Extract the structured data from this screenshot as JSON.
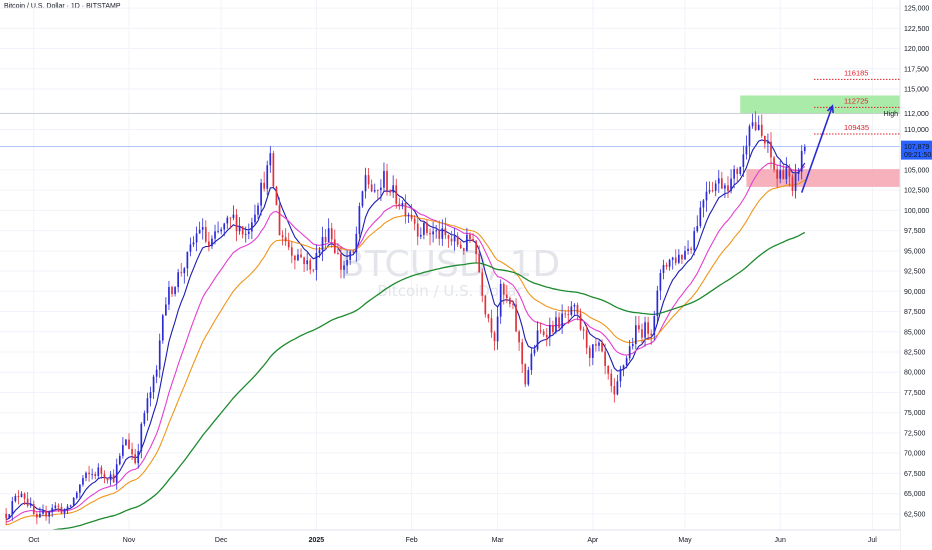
{
  "header": {
    "title": "Bitcoin / U.S. Dollar · 1D · BITSTAMP"
  },
  "watermark": {
    "symbol": "BTCUSD, 1D",
    "description": "Bitcoin / U.S. Dollar"
  },
  "colors": {
    "up": "#2b2bd6",
    "down": "#e0303a",
    "ema_fast": "#1c1cb0",
    "ema_mid": "#e43fd0",
    "ema_slow": "#f0961c",
    "ema_long": "#1e8a2e",
    "green_zone": "#9be79b",
    "red_zone": "#f4a3b2",
    "arrow": "#2a2ad0",
    "price_tag": "#2962ff",
    "level": "#e0202a",
    "grid": "#f0f3fa"
  },
  "chart_data": {
    "type": "candlestick",
    "symbol": "BTCUSD",
    "interval": "1D",
    "exchange": "BITSTAMP",
    "x_axis": {
      "ticks": [
        {
          "label": "Oct",
          "date": "2024-10-01",
          "bold": false
        },
        {
          "label": "Nov",
          "date": "2024-11-01",
          "bold": false
        },
        {
          "label": "Dec",
          "date": "2024-12-01",
          "bold": false
        },
        {
          "label": "2025",
          "date": "2025-01-01",
          "bold": true
        },
        {
          "label": "Feb",
          "date": "2025-02-01",
          "bold": false
        },
        {
          "label": "Mar",
          "date": "2025-03-01",
          "bold": false
        },
        {
          "label": "Apr",
          "date": "2025-04-01",
          "bold": false
        },
        {
          "label": "May",
          "date": "2025-05-01",
          "bold": false
        },
        {
          "label": "Jun",
          "date": "2025-06-01",
          "bold": false
        },
        {
          "label": "Jul",
          "date": "2025-07-01",
          "bold": false
        }
      ],
      "range": [
        "2024-09-20",
        "2025-07-10"
      ]
    },
    "y_axis": {
      "range": [
        60500,
        126000
      ],
      "ticks": [
        "62,500",
        "65,000",
        "67,500",
        "70,000",
        "72,500",
        "75,000",
        "77,500",
        "80,000",
        "82,500",
        "85,000",
        "87,500",
        "90,000",
        "92,500",
        "95,000",
        "97,500",
        "100,000",
        "102,500",
        "105,000",
        "110,000",
        "112,000",
        "115,000",
        "117,500",
        "120,000",
        "122,500",
        "125,000"
      ]
    },
    "current_price": {
      "value": 107879,
      "label": "107,879",
      "countdown": "09:21:50"
    },
    "high_marker": {
      "value": 112000,
      "text": "High",
      "label": "112,000"
    },
    "series": [
      {
        "name": "close",
        "anchors": [
          [
            "2024-09-22",
            62500
          ],
          [
            "2024-09-27",
            65500
          ],
          [
            "2024-10-02",
            61500
          ],
          [
            "2024-10-07",
            63500
          ],
          [
            "2024-10-12",
            62800
          ],
          [
            "2024-10-17",
            66800
          ],
          [
            "2024-10-22",
            67800
          ],
          [
            "2024-10-27",
            67000
          ],
          [
            "2024-10-31",
            71800
          ],
          [
            "2024-11-03",
            69000
          ],
          [
            "2024-11-06",
            75000
          ],
          [
            "2024-11-10",
            80000
          ],
          [
            "2024-11-12",
            88000
          ],
          [
            "2024-11-15",
            90500
          ],
          [
            "2024-11-20",
            94000
          ],
          [
            "2024-11-24",
            98000
          ],
          [
            "2024-11-27",
            95500
          ],
          [
            "2024-12-01",
            97500
          ],
          [
            "2024-12-05",
            99000
          ],
          [
            "2024-12-09",
            97000
          ],
          [
            "2024-12-13",
            101500
          ],
          [
            "2024-12-17",
            106000
          ],
          [
            "2024-12-20",
            97500
          ],
          [
            "2024-12-24",
            95000
          ],
          [
            "2024-12-28",
            94000
          ],
          [
            "2024-12-30",
            92500
          ],
          [
            "2025-01-05",
            98000
          ],
          [
            "2025-01-09",
            93000
          ],
          [
            "2025-01-13",
            94500
          ],
          [
            "2025-01-17",
            104500
          ],
          [
            "2025-01-20",
            101500
          ],
          [
            "2025-01-23",
            104000
          ],
          [
            "2025-01-26",
            102000
          ],
          [
            "2025-02-01",
            99500
          ],
          [
            "2025-02-03",
            97800
          ],
          [
            "2025-02-10",
            97000
          ],
          [
            "2025-02-18",
            95500
          ],
          [
            "2025-02-21",
            97000
          ],
          [
            "2025-02-25",
            88000
          ],
          [
            "2025-02-28",
            84500
          ],
          [
            "2025-03-02",
            90000
          ],
          [
            "2025-03-06",
            87500
          ],
          [
            "2025-03-10",
            79000
          ],
          [
            "2025-03-14",
            84500
          ],
          [
            "2025-03-20",
            86000
          ],
          [
            "2025-03-26",
            87500
          ],
          [
            "2025-03-31",
            82500
          ],
          [
            "2025-04-03",
            83000
          ],
          [
            "2025-04-08",
            76500
          ],
          [
            "2025-04-10",
            80000
          ],
          [
            "2025-04-15",
            85000
          ],
          [
            "2025-04-20",
            85500
          ],
          [
            "2025-04-24",
            93500
          ],
          [
            "2025-04-30",
            94500
          ],
          [
            "2025-05-03",
            96000
          ],
          [
            "2025-05-08",
            103000
          ],
          [
            "2025-05-12",
            103500
          ],
          [
            "2025-05-16",
            103500
          ],
          [
            "2025-05-20",
            106500
          ],
          [
            "2025-05-22",
            111500
          ],
          [
            "2025-05-26",
            109000
          ],
          [
            "2025-05-28",
            107500
          ],
          [
            "2025-05-31",
            104000
          ],
          [
            "2025-06-03",
            105500
          ],
          [
            "2025-06-05",
            101500
          ],
          [
            "2025-06-07",
            105500
          ],
          [
            "2025-06-09",
            107879
          ]
        ]
      }
    ],
    "moving_averages": [
      {
        "key": "ema_fast",
        "period": 8
      },
      {
        "key": "ema_mid",
        "period": 20
      },
      {
        "key": "ema_slow",
        "period": 34
      },
      {
        "key": "ema_long",
        "period": 100
      }
    ],
    "zones": [
      {
        "name": "supply-zone",
        "color_key": "green_zone",
        "from": 112000,
        "to": 114200,
        "start": "2025-05-19",
        "end": "2025-07-10"
      },
      {
        "name": "demand-zone",
        "color_key": "red_zone",
        "from": 102900,
        "to": 105100,
        "start": "2025-05-21",
        "end": "2025-07-10"
      }
    ],
    "levels": [
      {
        "value": 116185,
        "label": "116185",
        "start": "2025-06-12"
      },
      {
        "value": 112725,
        "label": "112725",
        "start": "2025-06-12"
      },
      {
        "value": 109435,
        "label": "109435",
        "start": "2025-06-12"
      }
    ],
    "projection": {
      "from": [
        "2025-06-08",
        102200
      ],
      "to": [
        "2025-06-18",
        112900
      ]
    }
  }
}
